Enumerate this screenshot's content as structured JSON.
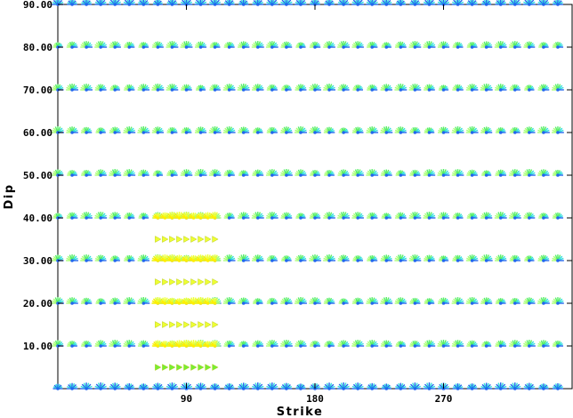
{
  "chart_data": {
    "type": "scatter",
    "xlabel": "Strike",
    "ylabel": "Dip",
    "x_ticks": [
      "90",
      "180",
      "270"
    ],
    "y_ticks": [
      "10.00",
      "20.00",
      "30.00",
      "40.00",
      "50.00",
      "60.00",
      "70.00",
      "80.00",
      "90.00"
    ],
    "x_tick_values": [
      90,
      180,
      270
    ],
    "y_tick_values": [
      10,
      20,
      30,
      40,
      50,
      60,
      70,
      80,
      90
    ],
    "xlim": [
      0,
      360
    ],
    "ylim": [
      0,
      90
    ],
    "grid": false,
    "series": [
      {
        "dip": 0,
        "strike_start": 0,
        "strike_end": 350,
        "strike_step": 10,
        "style": "cyan-fan"
      },
      {
        "dip": 10,
        "strike_start": 0,
        "strike_end": 350,
        "strike_step": 10,
        "style": "fan"
      },
      {
        "dip": 20,
        "strike_start": 0,
        "strike_end": 350,
        "strike_step": 10,
        "style": "fan"
      },
      {
        "dip": 30,
        "strike_start": 0,
        "strike_end": 350,
        "strike_step": 10,
        "style": "fan"
      },
      {
        "dip": 40,
        "strike_start": 0,
        "strike_end": 350,
        "strike_step": 10,
        "style": "fan"
      },
      {
        "dip": 50,
        "strike_start": 0,
        "strike_end": 350,
        "strike_step": 10,
        "style": "fan"
      },
      {
        "dip": 60,
        "strike_start": 0,
        "strike_end": 350,
        "strike_step": 10,
        "style": "fan"
      },
      {
        "dip": 70,
        "strike_start": 0,
        "strike_end": 350,
        "strike_step": 10,
        "style": "fan"
      },
      {
        "dip": 80,
        "strike_start": 0,
        "strike_end": 350,
        "strike_step": 10,
        "style": "fan"
      },
      {
        "dip": 90,
        "strike_start": 0,
        "strike_end": 350,
        "strike_step": 10,
        "style": "cyan-fan"
      },
      {
        "dip": 5,
        "strike_start": 70,
        "strike_end": 110,
        "strike_step": 5,
        "style": "green-arrow"
      },
      {
        "dip": 15,
        "strike_start": 70,
        "strike_end": 110,
        "strike_step": 5,
        "style": "yellow-arrow"
      },
      {
        "dip": 25,
        "strike_start": 70,
        "strike_end": 110,
        "strike_step": 5,
        "style": "yellow-arrow"
      },
      {
        "dip": 35,
        "strike_start": 70,
        "strike_end": 110,
        "strike_step": 5,
        "style": "yellow-arrow"
      },
      {
        "dip": 10,
        "strike_start": 70,
        "strike_end": 110,
        "strike_step": 5,
        "style": "yellow-fan"
      },
      {
        "dip": 20,
        "strike_start": 70,
        "strike_end": 110,
        "strike_step": 5,
        "style": "yellow-fan"
      },
      {
        "dip": 30,
        "strike_start": 70,
        "strike_end": 110,
        "strike_step": 5,
        "style": "yellow-fan"
      },
      {
        "dip": 40,
        "strike_start": 70,
        "strike_end": 110,
        "strike_step": 5,
        "style": "yellow-fan"
      }
    ],
    "colors": {
      "cyan": "#33dddd",
      "blue": "#2266ee",
      "green": "#55ee66",
      "lightgreen": "#aaff77",
      "yellow": "#eeff33",
      "deepyellow": "#ffee00",
      "arrowgreen": "#77ee33"
    }
  }
}
